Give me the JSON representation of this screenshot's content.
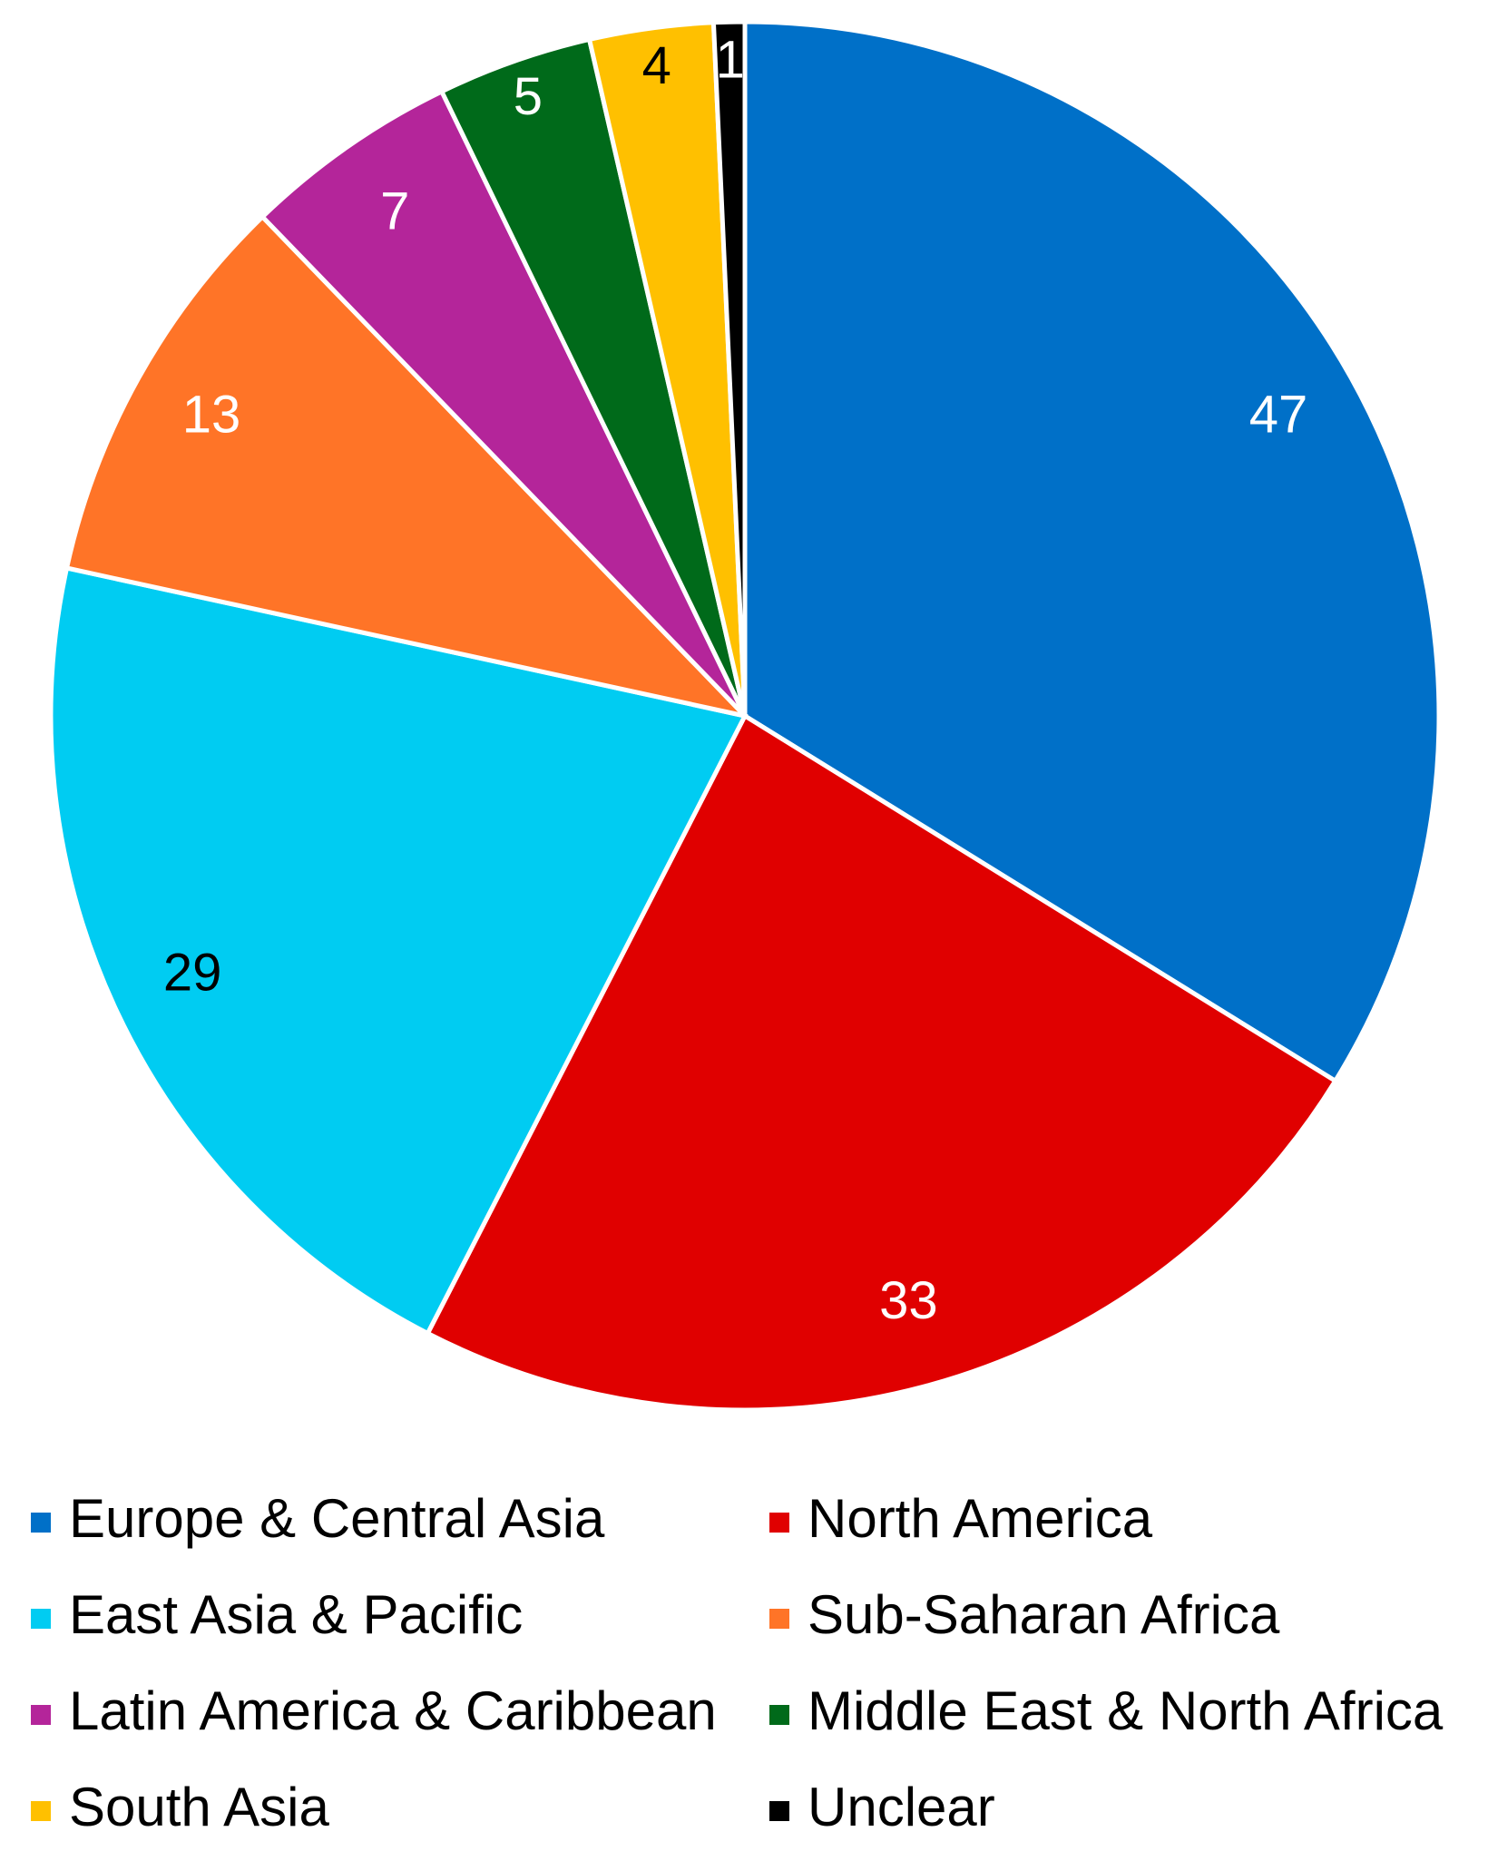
{
  "chart_data": {
    "type": "pie",
    "categories": [
      "Europe & Central Asia",
      "North America",
      "East Asia & Pacific",
      "Sub-Saharan Africa",
      "Latin America & Caribbean",
      "Middle East & North Africa",
      "South Asia",
      "Unclear"
    ],
    "values": [
      47,
      33,
      29,
      13,
      7,
      5,
      4,
      1
    ],
    "colors": [
      "#0070c8",
      "#e00000",
      "#00ccf2",
      "#ff7427",
      "#b4259a",
      "#006a1a",
      "#ffc000",
      "#000000"
    ],
    "label_colors": [
      "#ffffff",
      "#ffffff",
      "#000000",
      "#ffffff",
      "#ffffff",
      "#ffffff",
      "#000000",
      "#ffffff"
    ],
    "legend": "bottom"
  }
}
